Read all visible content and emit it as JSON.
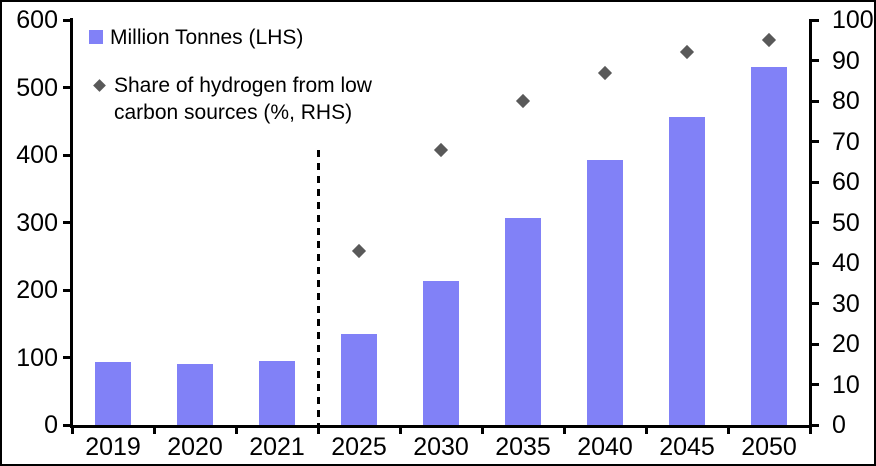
{
  "chart_data": {
    "type": "combo",
    "title": "",
    "categories": [
      "2019",
      "2020",
      "2021",
      "2025",
      "2030",
      "2035",
      "2040",
      "2045",
      "2050"
    ],
    "series": [
      {
        "name": "Million Tonnes (LHS)",
        "type": "bar",
        "axis": "left",
        "color": "#8181F7",
        "values": [
          93,
          91,
          95,
          135,
          213,
          306,
          392,
          456,
          530
        ]
      },
      {
        "name": "Share of hydrogen from low carbon sources (%, RHS)",
        "type": "scatter",
        "marker": "diamond",
        "axis": "right",
        "color": "#595959",
        "values": [
          null,
          null,
          null,
          43,
          68,
          80,
          87,
          92,
          95
        ]
      }
    ],
    "left_axis": {
      "min": 0,
      "max": 600,
      "step": 100,
      "tick_labels": [
        "0",
        "100",
        "200",
        "300",
        "400",
        "500",
        "600"
      ]
    },
    "right_axis": {
      "min": 0,
      "max": 100,
      "step": 10,
      "tick_labels": [
        "0",
        "10",
        "20",
        "30",
        "40",
        "50",
        "60",
        "70",
        "80",
        "90",
        "100"
      ]
    },
    "annotations": {
      "forecast_divider": {
        "type": "vertical-dashed-line",
        "between": [
          "2021",
          "2025"
        ]
      }
    },
    "legend_position": "top-left",
    "grid": false
  },
  "legend": {
    "bars_label": "Million Tonnes (LHS)",
    "scatter_label": "Share of hydrogen from low\ncarbon sources (%, RHS)"
  },
  "colors": {
    "bar": "#8181F7",
    "diamond": "#595959",
    "axis": "#000000",
    "background": "#FFFFFF"
  }
}
